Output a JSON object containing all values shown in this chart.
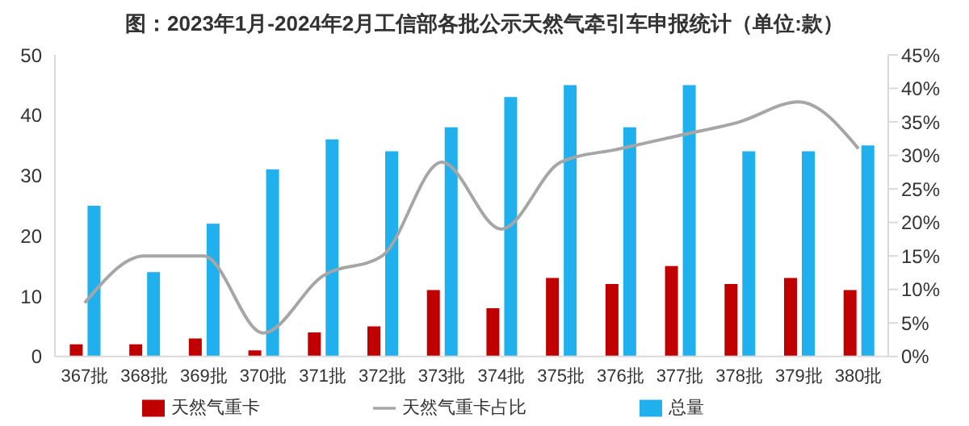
{
  "chart_data": {
    "type": "bar",
    "title": "图：2023年1月-2024年2月工信部各批公示天然气牵引车申报统计（单位:款）",
    "categories": [
      "367批",
      "368批",
      "369批",
      "370批",
      "371批",
      "372批",
      "373批",
      "374批",
      "375批",
      "376批",
      "377批",
      "378批",
      "379批",
      "380批"
    ],
    "series": [
      {
        "name": "天然气重卡",
        "color": "#c00000",
        "values": [
          2,
          2,
          3,
          1,
          4,
          5,
          11,
          8,
          13,
          12,
          15,
          12,
          13,
          11
        ]
      },
      {
        "name": "总量",
        "color": "#1fb0ed",
        "values": [
          25,
          14,
          22,
          31,
          36,
          34,
          38,
          43,
          45,
          38,
          45,
          34,
          34,
          35
        ]
      },
      {
        "name": "天然气重卡占比",
        "type": "line",
        "axis": "y2",
        "color": "#a6a6a6",
        "marker": "none",
        "values": [
          8,
          15,
          15,
          3.5,
          12,
          15,
          29,
          19,
          29,
          31,
          33,
          35,
          38,
          31
        ]
      }
    ],
    "ylim": [
      0,
      50
    ],
    "yticks": [
      0,
      10,
      20,
      30,
      40,
      50
    ],
    "y2lim": [
      0,
      45
    ],
    "y2ticks": [
      {
        "value": 0,
        "label": "0%"
      },
      {
        "value": 5,
        "label": "5%"
      },
      {
        "value": 10,
        "label": "10%"
      },
      {
        "value": 15,
        "label": "15%"
      },
      {
        "value": 20,
        "label": "20%"
      },
      {
        "value": 25,
        "label": "25%"
      },
      {
        "value": 30,
        "label": "30%"
      },
      {
        "value": 35,
        "label": "35%"
      },
      {
        "value": 40,
        "label": "40%"
      },
      {
        "value": 45,
        "label": "45%"
      }
    ],
    "grid": false,
    "legend": "bottom"
  }
}
